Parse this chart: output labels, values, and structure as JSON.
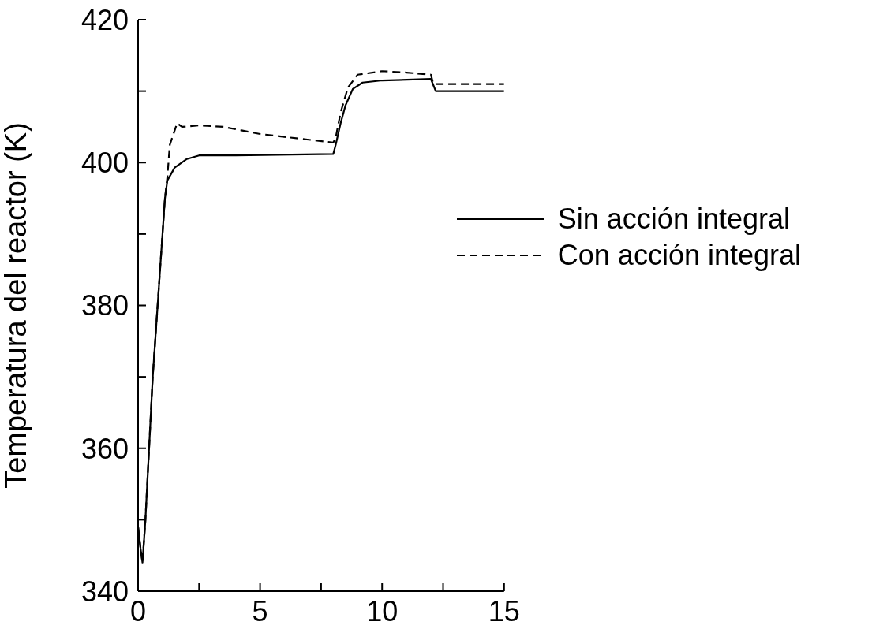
{
  "chart_data": {
    "type": "line",
    "ylabel": "Temperatura del reactor (K)",
    "xlim": [
      0,
      15
    ],
    "xticks": [
      0,
      {
        "value": 2.5,
        "label": null
      },
      5,
      {
        "value": 7.5,
        "label": null
      },
      10,
      {
        "value": 12.5,
        "label": null
      },
      15
    ],
    "ylim": [
      340,
      420
    ],
    "yticks": [
      340,
      {
        "value": 350,
        "label": null
      },
      360,
      {
        "value": 370,
        "label": null
      },
      380,
      {
        "value": 390,
        "label": null
      },
      400,
      {
        "value": 410,
        "label": null
      },
      420
    ],
    "grid": false,
    "legend": "right",
    "marker": "none",
    "series": [
      {
        "name": "Sin acción integral",
        "color": "#000000",
        "line_style": "solid",
        "x": [
          0,
          0.1,
          0.18,
          0.3,
          0.6,
          0.9,
          1.1,
          1.2,
          1.5,
          2,
          2.5,
          4,
          8,
          8.1,
          8.3,
          8.5,
          8.8,
          9.2,
          10,
          12,
          12.2,
          15
        ],
        "values": [
          349,
          346,
          344,
          350,
          370,
          385,
          395,
          397.5,
          399.3,
          400.5,
          401,
          401,
          401.2,
          402.5,
          405.5,
          408,
          410.3,
          411.2,
          411.5,
          411.7,
          410,
          410
        ]
      },
      {
        "name": "Con acción integral",
        "color": "#000000",
        "line_style": "dashed",
        "x": [
          0,
          0.1,
          0.18,
          0.3,
          0.6,
          0.9,
          1.1,
          1.2,
          1.3,
          1.5,
          1.6,
          1.8,
          2.5,
          3.5,
          5,
          7,
          8,
          8.1,
          8.3,
          8.6,
          9,
          10,
          11,
          12,
          12.1,
          15
        ],
        "values": [
          349,
          346,
          344,
          350,
          370,
          385,
          395,
          398,
          402.5,
          404.5,
          405.5,
          405,
          405.2,
          405,
          404,
          403.2,
          402.8,
          403.5,
          407,
          410.5,
          412.3,
          412.8,
          412.6,
          412.3,
          411,
          411
        ]
      }
    ]
  }
}
